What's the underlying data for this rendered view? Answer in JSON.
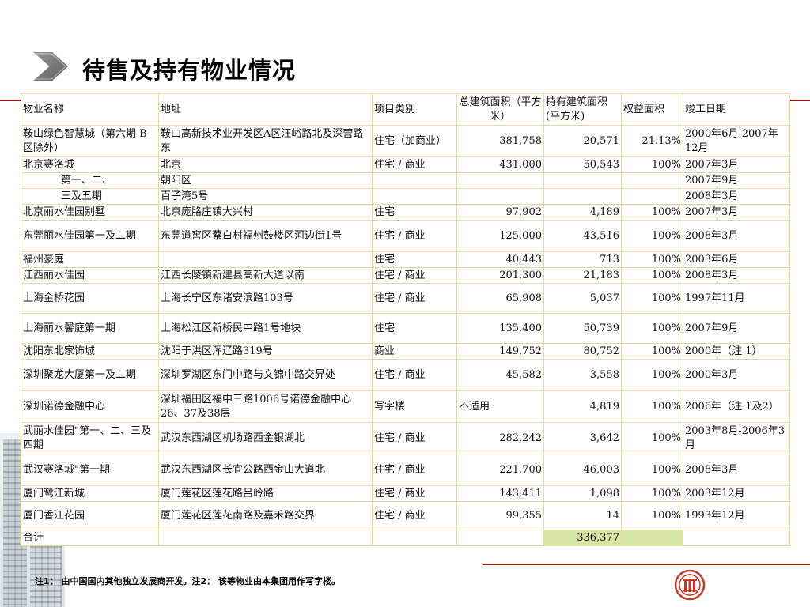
{
  "title": "待售及持有物业情况",
  "table": {
    "headers": [
      "物业名称",
      "地址",
      "项目类别",
      "总建筑面积（平方米）",
      "持有建筑面积(平方米)",
      "权益面积",
      "竣工日期"
    ],
    "rows": [
      {
        "name": "鞍山绿色智慧城（第六期 B区除外）",
        "address": "鞍山高新技术业开发区A区汪峪路北及深营路东",
        "type": "住宅（加商业）",
        "gfa": "381,758",
        "held": "20,571",
        "equity": "21.13%",
        "date": "2000年6月-2007年12月"
      },
      {
        "name": "北京赛洛城",
        "address": "北京",
        "type": "住宅 / 商业",
        "gfa": "431,000",
        "held": "50,543",
        "equity": "100%",
        "date": "2007年3月"
      },
      {
        "name": "第一、二、",
        "address": "朝阳区",
        "type": "",
        "gfa": "",
        "held": "",
        "equity": "",
        "date": "2007年9月"
      },
      {
        "name": "三及五期",
        "address": "百子湾5号",
        "type": "",
        "gfa": "",
        "held": "",
        "equity": "",
        "date": "2008年3月"
      },
      {
        "name": "北京丽水佳园别墅",
        "address": "北京庞胳庄镇大兴村",
        "type": "住宅",
        "gfa": "97,902",
        "held": "4,189",
        "equity": "100%",
        "date": "2007年3月"
      },
      {
        "name": "东莞丽水佳园第一及二期",
        "address": "东莞道窖区蔡白村福州鼓楼区河边街1号",
        "type": "住宅 / 商业",
        "gfa": "125,000",
        "held": "43,516",
        "equity": "100%",
        "date": "2008年3月"
      },
      {
        "name": "福州豪庭",
        "address": "",
        "type": "住宅",
        "gfa": "40,443",
        "held": "713",
        "equity": "100%",
        "date": "2003年6月"
      },
      {
        "name": "江西丽水佳园",
        "address": "江西长陵镇新建县高新大道以南",
        "type": "住宅 / 商业",
        "gfa": "201,300",
        "held": "21,183",
        "equity": "100%",
        "date": "2008年3月"
      },
      {
        "name": "上海金桥花园",
        "address": "上海长宁区东诸安滨路103号",
        "type": "住宅 / 商业",
        "gfa": "65,908",
        "held": "5,037",
        "equity": "100%",
        "date": "1997年11月"
      },
      {
        "name": "上海丽水馨庭第一期",
        "address": "上海松江区新桥民中路1号地块",
        "type": "住宅",
        "gfa": "135,400",
        "held": "50,739",
        "equity": "100%",
        "date": "2007年9月"
      },
      {
        "name": "沈阳东北家饰城",
        "address": "沈阳于洪区浑辽路319号",
        "type": "商业",
        "gfa": "149,752",
        "held": "80,752",
        "equity": "100%",
        "date": "2000年（注 1）"
      },
      {
        "name": "深圳聚龙大厦第一及二期",
        "address": "深圳罗湖区东门中路与文锦中路交界处",
        "type": "住宅 / 商业",
        "gfa": "45,582",
        "held": "3,558",
        "equity": "100%",
        "date": "2000年3月"
      },
      {
        "name": "深圳诺德金融中心",
        "address": "深圳福田区福中三路1006号诺德金融中心26、37及38层",
        "type": "写字楼",
        "gfa": "不适用",
        "held": "4,819",
        "equity": "100%",
        "date": "2006年（注 1及2）"
      },
      {
        "name": "武丽水佳园\"第一、二、三及四期",
        "address": "武汉东西湖区机场路西金银湖北",
        "type": "住宅 / 商业",
        "gfa": "282,242",
        "held": "3,642",
        "equity": "100%",
        "date": "2003年8月-2006年3月"
      },
      {
        "name": "武汉赛洛城\"第一期",
        "address": "武汉东西湖区长宜公路西金山大道北",
        "type": "住宅 / 商业",
        "gfa": "221,700",
        "held": "46,003",
        "equity": "100%",
        "date": "2008年3月"
      },
      {
        "name": "厦门鹭江新城",
        "address": "厦门莲花区莲花路吕岭路",
        "type": "住宅 / 商业",
        "gfa": "143,411",
        "held": "1,098",
        "equity": "100%",
        "date": "2003年12月"
      },
      {
        "name": "厦门香江花园",
        "address": "厦门莲花区莲花南路及嘉禾路交界",
        "type": "住宅 / 商业",
        "gfa": "99,355",
        "held": "14",
        "equity": "100%",
        "date": "1993年12月"
      }
    ],
    "total": {
      "label": "合计",
      "held": "336,377"
    }
  },
  "footnote": "注1： 由中国国内其他独立发展商开发。注2： 该等物业由本集团用作写字楼。",
  "icons": {
    "title_marker": "chevron-right-icon",
    "logo": "citic-logo-icon",
    "background": "building-photo"
  },
  "colors": {
    "accent_line": "#a01a1a",
    "table_border": "#e6dc9c",
    "total_highlight": "#d8e4a6",
    "logo": "#c0392b"
  }
}
